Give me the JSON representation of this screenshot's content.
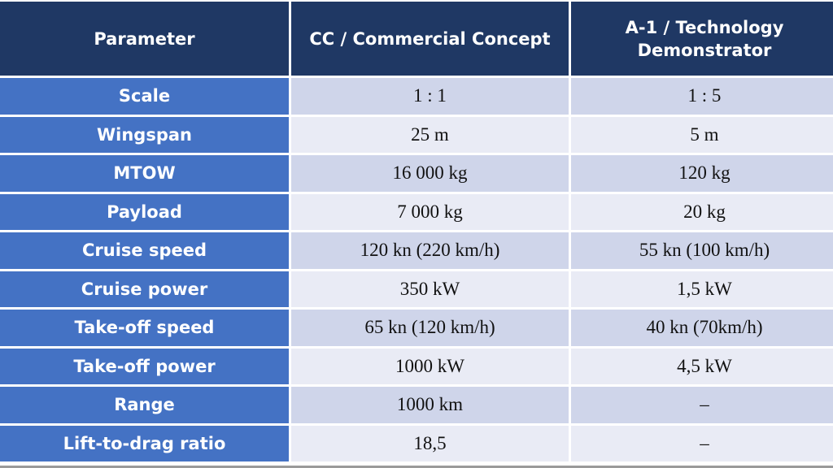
{
  "colors": {
    "header": "#1f3864",
    "param_column": "#4472c4",
    "row_dark": "#cfd5ea",
    "row_light": "#e9ebf5"
  },
  "table": {
    "headers": [
      "Parameter",
      "CC / Commercial Concept",
      "A-1 / Technology Demonstrator"
    ],
    "rows": [
      [
        "Scale",
        "1 : 1",
        "1 : 5"
      ],
      [
        "Wingspan",
        "25 m",
        "5 m"
      ],
      [
        "MTOW",
        "16 000 kg",
        "120 kg"
      ],
      [
        "Payload",
        "7 000 kg",
        "20 kg"
      ],
      [
        "Cruise speed",
        "120 kn (220 km/h)",
        "55 kn (100 km/h)"
      ],
      [
        "Cruise power",
        "350 kW",
        "1,5 kW"
      ],
      [
        "Take-off speed",
        "65 kn (120 km/h)",
        "40 kn (70km/h)"
      ],
      [
        "Take-off power",
        "1000 kW",
        "4,5 kW"
      ],
      [
        "Range",
        "1000 km",
        "–"
      ],
      [
        "Lift-to-drag ratio",
        "18,5",
        "–"
      ]
    ]
  }
}
